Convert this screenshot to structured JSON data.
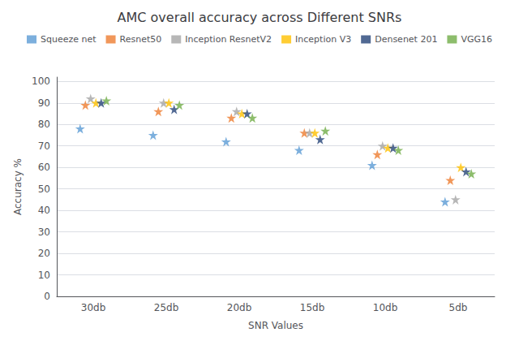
{
  "chart_data": {
    "type": "scatter",
    "title": "AMC overall accuracy across Different SNRs",
    "xlabel": "SNR Values",
    "ylabel": "Accuracy %",
    "categories": [
      "30db",
      "25db",
      "20db",
      "15db",
      "10db",
      "5db"
    ],
    "series": [
      {
        "name": "Squeeze net",
        "color": "#5B9BD5",
        "values": [
          78,
          75,
          72,
          68,
          61,
          44
        ]
      },
      {
        "name": "Resnet50",
        "color": "#ED7D31",
        "values": [
          89,
          86,
          83,
          76,
          66,
          54
        ]
      },
      {
        "name": "Inception ResnetV2",
        "color": "#A5A5A5",
        "values": [
          92,
          90,
          86,
          76,
          70,
          45
        ]
      },
      {
        "name": "Inception V3",
        "color": "#FFC000",
        "values": [
          90,
          90,
          85,
          76,
          69,
          60
        ]
      },
      {
        "name": "Densenet 201",
        "color": "#264478",
        "values": [
          90,
          87,
          85,
          73,
          69,
          58
        ]
      },
      {
        "name": "VGG16",
        "color": "#70AD47",
        "values": [
          91,
          89,
          83,
          77,
          68,
          57
        ]
      }
    ],
    "marker": "star",
    "ylim": [
      0,
      102
    ],
    "yticks": [
      0,
      10,
      20,
      30,
      40,
      50,
      60,
      70,
      80,
      90,
      100
    ],
    "grid": true,
    "legend": "top"
  }
}
